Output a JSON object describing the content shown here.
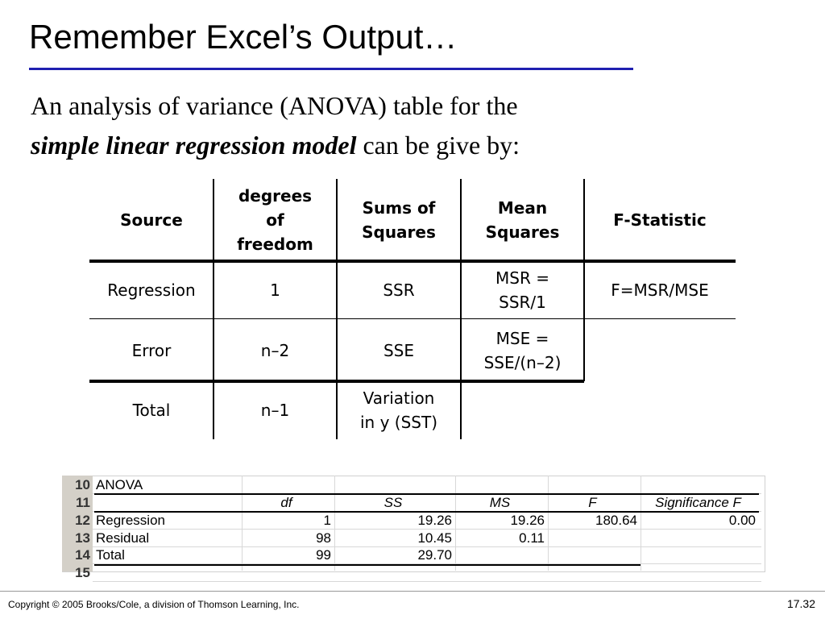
{
  "title": "Remember Excel’s Output…",
  "intro": {
    "line1": "An analysis of variance (ANOVA) table for the",
    "emphasis": "simple linear regression model",
    "line2_rest": " can be give by:"
  },
  "table": {
    "header": [
      [
        "Source"
      ],
      [
        "degrees",
        "of",
        "freedom"
      ],
      [
        "Sums of",
        "Squares"
      ],
      [
        "Mean",
        "Squares"
      ],
      [
        "F-Statistic"
      ]
    ],
    "rows": [
      [
        [
          "Regression"
        ],
        [
          "1"
        ],
        [
          "SSR"
        ],
        [
          "MSR =",
          "SSR/1"
        ],
        [
          "F=MSR/MSE"
        ]
      ],
      [
        [
          "Error"
        ],
        [
          "n–2"
        ],
        [
          "SSE"
        ],
        [
          "MSE =",
          "SSE/(n–2)"
        ]
      ],
      [
        [
          "Total"
        ],
        [
          "n–1"
        ],
        [
          "Variation",
          "in y (SST)"
        ]
      ]
    ]
  },
  "excel": {
    "row_numbers": [
      "10",
      "11",
      "12",
      "13",
      "14",
      "15"
    ],
    "rows": [
      [
        "ANOVA"
      ],
      [
        "",
        "df",
        "SS",
        "MS",
        "F",
        "Significance F"
      ],
      [
        "Regression",
        "1",
        "19.26",
        "19.26",
        "180.64",
        "0.00"
      ],
      [
        "Residual",
        "98",
        "10.45",
        "0.11"
      ],
      [
        "Total",
        "99",
        "29.70"
      ]
    ]
  },
  "footer": {
    "copyright": "Copyright © 2005 Brooks/Cole, a division of Thomson Learning, Inc.",
    "page": "17.32"
  }
}
